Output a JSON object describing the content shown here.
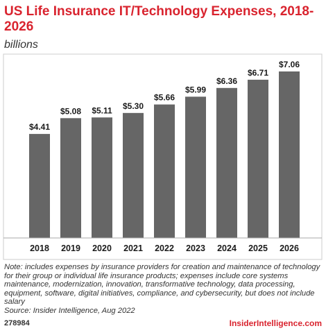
{
  "header": {
    "title": "US Life Insurance IT/Technology Expenses, 2018-2026",
    "subtitle": "billions"
  },
  "chart_data": {
    "type": "bar",
    "categories": [
      "2018",
      "2019",
      "2020",
      "2021",
      "2022",
      "2023",
      "2024",
      "2025",
      "2026"
    ],
    "values": [
      4.41,
      5.08,
      5.11,
      5.3,
      5.66,
      5.99,
      6.36,
      6.71,
      7.06
    ],
    "data_labels": [
      "$4.41",
      "$5.08",
      "$5.11",
      "$5.30",
      "$5.66",
      "$5.99",
      "$6.36",
      "$6.71",
      "$7.06"
    ],
    "title": "US Life Insurance IT/Technology Expenses, 2018-2026",
    "subtitle": "billions",
    "ylim": [
      0,
      7.06
    ],
    "grid": false,
    "bar_color": "#666666"
  },
  "footer": {
    "note": "Note: includes expenses by insurance providers for creation and maintenance of technology for their group or individual life insurance products; expenses include core systems maintenance, modernization, innovation, transformative technology, data processing, equipment, software, digital initiatives, compliance, and cybersecurity, but does not include salary",
    "source": "Source: Insider Intelligence, Aug 2022",
    "chart_id": "278984",
    "brand": "InsiderIntelligence.com"
  },
  "colors": {
    "accent": "#d9232e",
    "bar": "#666666"
  }
}
